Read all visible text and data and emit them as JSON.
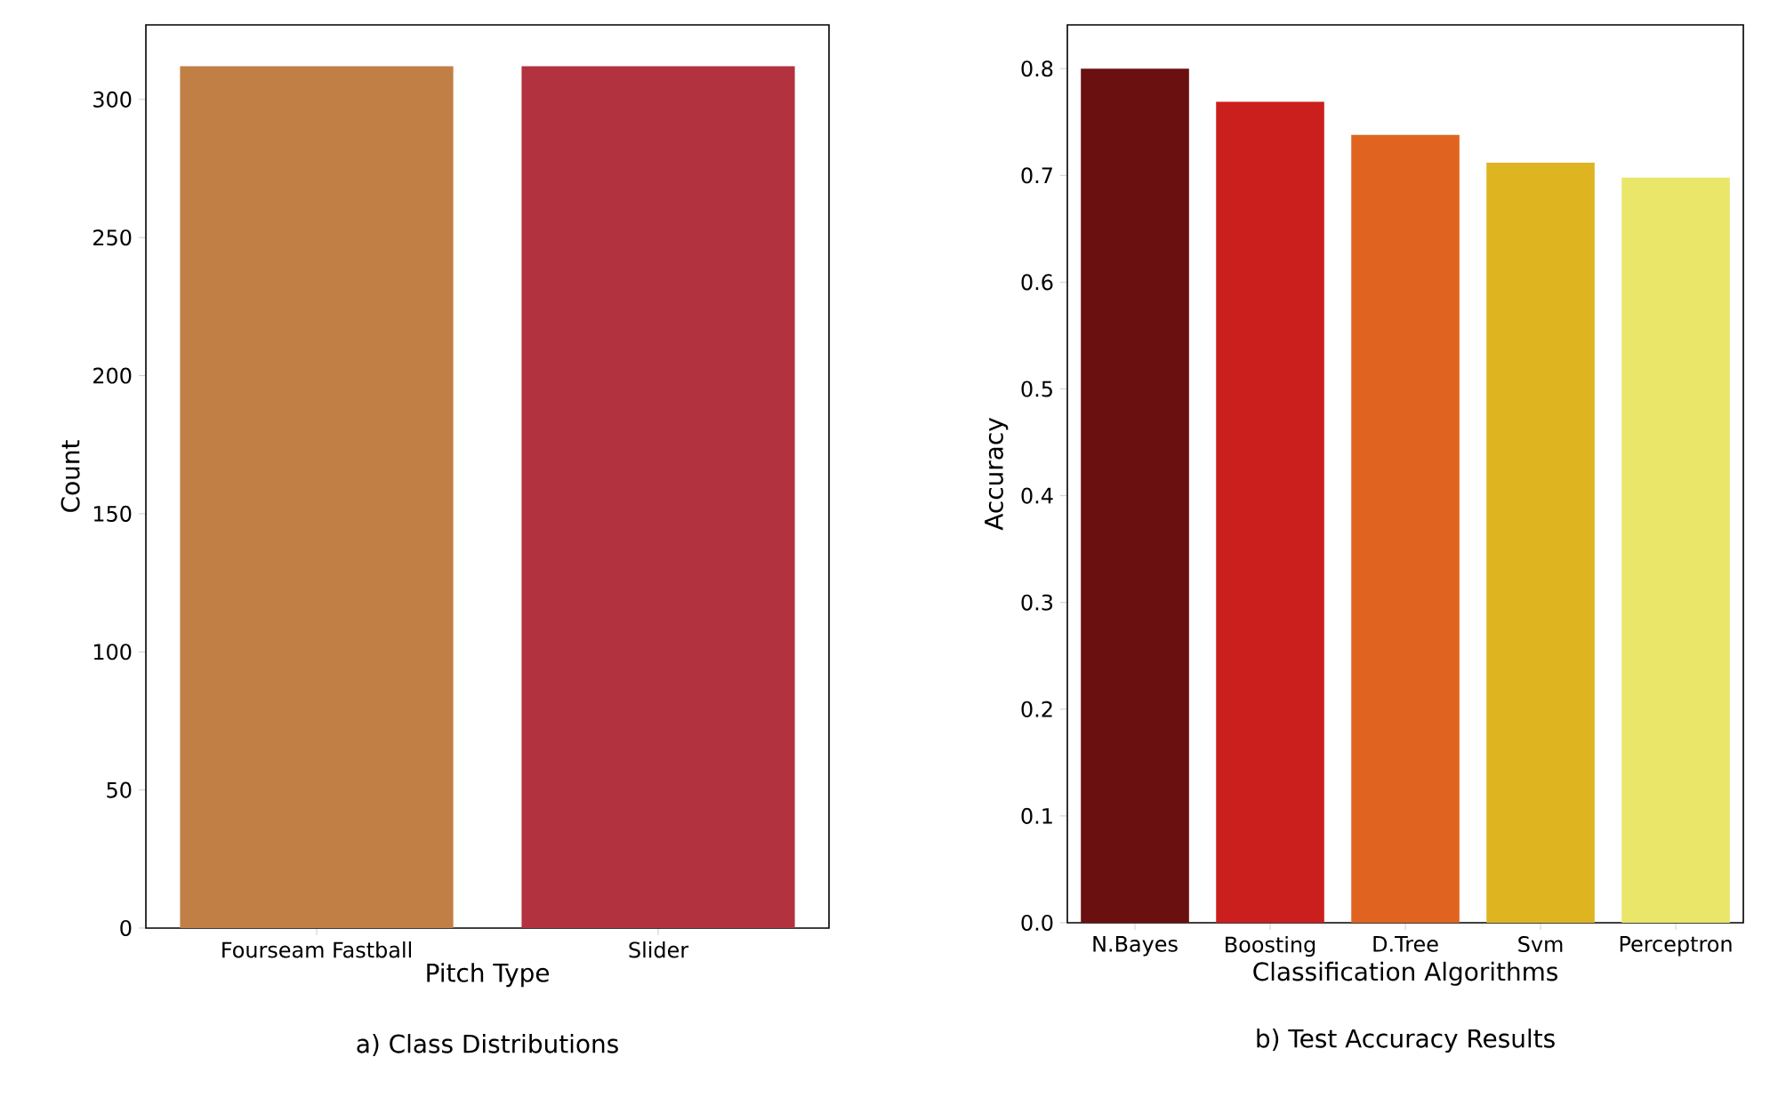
{
  "chart_data": [
    {
      "type": "bar",
      "title": "a) Class Distributions",
      "xlabel": "Pitch Type",
      "ylabel": "Count",
      "categories": [
        "Fourseam Fastball",
        "Slider"
      ],
      "values": [
        312,
        312
      ],
      "colors": [
        "#c17f45",
        "#b33240"
      ],
      "ylim": [
        0,
        327
      ],
      "yticks": [
        0,
        50,
        100,
        150,
        200,
        250,
        300
      ]
    },
    {
      "type": "bar",
      "title": "b) Test Accuracy Results",
      "xlabel": "Classification Algorithms",
      "ylabel": "Accuracy",
      "categories": [
        "N.Bayes",
        "Boosting",
        "D.Tree",
        "Svm",
        "Perceptron"
      ],
      "values": [
        0.8,
        0.769,
        0.738,
        0.712,
        0.698
      ],
      "colors": [
        "#6a1010",
        "#cb1f1d",
        "#e06420",
        "#deb521",
        "#e9e66a"
      ],
      "ylim": [
        0,
        0.841
      ],
      "yticks": [
        {
          "value": 0,
          "label": "0.0"
        },
        0.1,
        0.2,
        0.3,
        0.4,
        0.5,
        0.6,
        0.7,
        0.8
      ]
    }
  ]
}
